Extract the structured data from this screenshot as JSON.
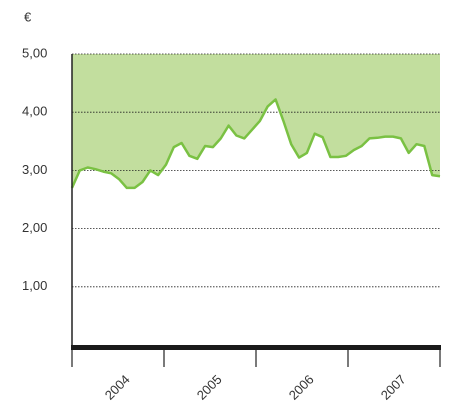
{
  "chart_data": {
    "type": "line",
    "unit_label": "€",
    "years": [
      "2004",
      "2005",
      "2006",
      "2007"
    ],
    "values": [
      2.7,
      3.0,
      3.05,
      3.02,
      2.98,
      2.95,
      2.85,
      2.7,
      2.7,
      2.8,
      3.0,
      2.92,
      3.1,
      3.4,
      3.47,
      3.25,
      3.2,
      3.42,
      3.4,
      3.55,
      3.77,
      3.6,
      3.55,
      3.7,
      3.85,
      4.1,
      4.22,
      3.85,
      3.45,
      3.22,
      3.3,
      3.63,
      3.57,
      3.23,
      3.23,
      3.25,
      3.35,
      3.42,
      3.55,
      3.56,
      3.58,
      3.58,
      3.55,
      3.3,
      3.45,
      3.42,
      2.92,
      2.9
    ],
    "color": "#7ac143",
    "fill_color": "#c2de9e",
    "ylim": [
      0,
      5
    ],
    "yticks": [
      {
        "value": 1,
        "label": "1,00"
      },
      {
        "value": 2,
        "label": "2,00"
      },
      {
        "value": 3,
        "label": "3,00"
      },
      {
        "value": 4,
        "label": "4,00"
      },
      {
        "value": 5,
        "label": "5,00"
      }
    ],
    "grid": true
  }
}
